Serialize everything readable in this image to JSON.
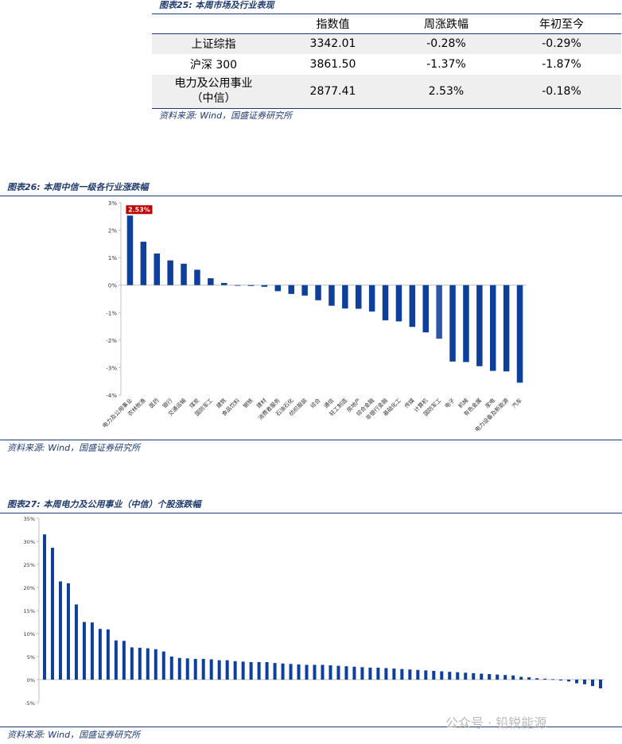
{
  "table1": {
    "caption": "图表25:  本周市场及行业表现",
    "headers": [
      "",
      "指数值",
      "周涨跌幅",
      "年初至今"
    ],
    "rows": [
      {
        "name": "上证综指",
        "value": "3342.01",
        "week": "-0.28%",
        "ytd": "-0.29%"
      },
      {
        "name": "沪深 300",
        "value": "3861.50",
        "week": "-1.37%",
        "ytd": "-1.87%"
      },
      {
        "name_line1": "电力及公用事业",
        "name_line2": "（中信）",
        "value": "2877.41",
        "week": "2.53%",
        "ytd": "-0.18%"
      }
    ],
    "source": "资料来源:  Wind，国盛证券研究所"
  },
  "chart_data": [
    {
      "type": "bar",
      "caption": "图表26:  本周中信一级各行业涨跌幅",
      "source": "资料来源:  Wind，国盛证券研究所",
      "categories": [
        "电力及公用事业",
        "农林牧渔",
        "医药",
        "银行",
        "交通运输",
        "煤炭",
        "国防军工b",
        "建筑",
        "食品饮料",
        "钢铁",
        "建材",
        "消费者服务",
        "石油石化",
        "纺织服装",
        "综合",
        "通信",
        "轻工制造",
        "房地产",
        "综合金融",
        "非银行金融",
        "基础化工",
        "传媒",
        "计算机",
        "国防军工",
        "电子",
        "机械",
        "有色金属",
        "家电",
        "电力设备及新能源",
        "汽车"
      ],
      "tick_labels": [
        "电力及公用事业",
        "农林牧渔",
        "医药",
        "银行",
        "交通运输",
        "煤炭",
        "国防军工",
        "建筑",
        "食品饮料",
        "钢铁",
        "建材",
        "消费者服务",
        "石油石化",
        "纺织服装",
        "综合",
        "通信",
        "轻工制造",
        "房地产",
        "综合金融",
        "非银行金融",
        "基础化工",
        "传媒",
        "计算机",
        "国防军工",
        "电子",
        "机械",
        "有色金属",
        "家电",
        "电力设备及新能源",
        "汽车"
      ],
      "tick_shown": [
        true,
        true,
        true,
        true,
        true,
        true,
        true,
        true,
        true,
        true,
        true,
        true,
        true,
        true,
        true,
        true,
        true,
        true,
        true,
        true,
        true,
        true,
        true,
        true,
        true,
        true,
        true,
        true,
        true,
        true
      ],
      "values": [
        2.53,
        1.58,
        1.15,
        0.9,
        0.78,
        0.56,
        0.25,
        0.08,
        -0.02,
        -0.03,
        -0.06,
        -0.22,
        -0.32,
        -0.38,
        -0.55,
        -0.75,
        -0.85,
        -0.86,
        -0.96,
        -1.28,
        -1.32,
        -1.52,
        -1.72,
        -1.95,
        -2.78,
        -2.8,
        -2.95,
        -3.12,
        -3.14,
        -3.55
      ],
      "highlight_index": 23,
      "label_index": 0,
      "data_label": "2.53%",
      "ylim": [
        -4,
        3
      ],
      "yticks": [
        "-4%",
        "-3%",
        "-2%",
        "-1%",
        "0%",
        "1%",
        "2%",
        "3%"
      ],
      "ytick_values": [
        -4,
        -3,
        -2,
        -1,
        0,
        1,
        2,
        3
      ],
      "grid": false,
      "colors": {
        "bar": "#0e3f9b",
        "highlight": "#2f55a8",
        "label_bg": "#c00000"
      }
    },
    {
      "type": "bar",
      "caption": "图表27:  本周电力及公用事业（中信）个股涨跌幅",
      "source": "资料来源:  Wind，国盛证券研究所",
      "values": [
        31.5,
        28.6,
        21.3,
        20.9,
        16.3,
        12.5,
        12.4,
        11.0,
        10.9,
        8.5,
        8.4,
        7.0,
        6.9,
        6.8,
        6.6,
        6.1,
        5.0,
        4.7,
        4.6,
        4.5,
        4.5,
        4.4,
        4.2,
        4.2,
        4.0,
        3.9,
        3.8,
        3.8,
        3.8,
        3.6,
        3.5,
        3.4,
        3.3,
        3.2,
        3.2,
        3.2,
        3.1,
        3.0,
        2.9,
        2.8,
        2.7,
        2.6,
        2.6,
        2.5,
        2.4,
        2.3,
        2.2,
        2.1,
        2.0,
        1.9,
        1.8,
        1.7,
        1.6,
        1.5,
        1.4,
        1.3,
        1.2,
        1.1,
        1.0,
        0.9,
        0.6,
        0.5,
        0.3,
        0.2,
        0.1,
        -0.2,
        -0.4,
        -0.8,
        -1.0,
        -1.4,
        -1.9
      ],
      "ylim": [
        -5,
        35
      ],
      "yticks": [
        "-5%",
        "0%",
        "5%",
        "10%",
        "15%",
        "20%",
        "25%",
        "30%",
        "35%"
      ],
      "ytick_values": [
        -5,
        0,
        5,
        10,
        15,
        20,
        25,
        30,
        35
      ],
      "grid": false,
      "colors": {
        "bar": "#0e3f9b"
      }
    }
  ],
  "watermark": "公众号 · 铅锐能源"
}
